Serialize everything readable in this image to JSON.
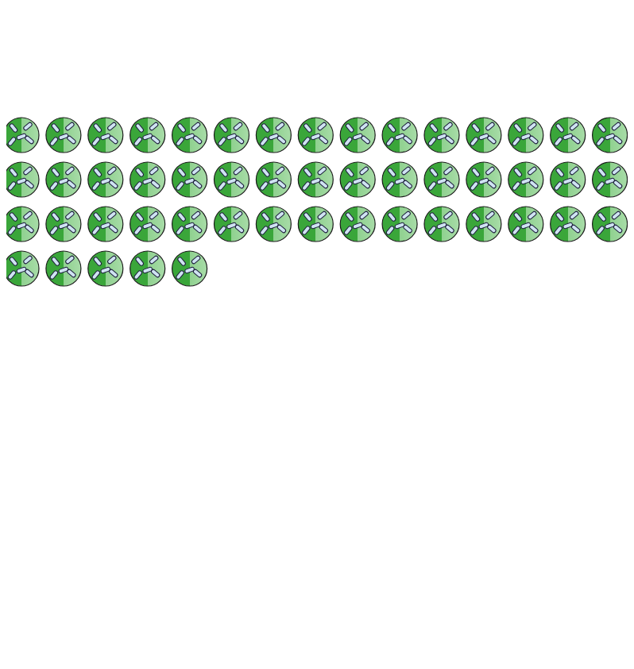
{
  "chart_data": {
    "type": "pictograph",
    "values": [
      50
    ],
    "color": "#3aa63a",
    "tick_labels": false
  }
}
